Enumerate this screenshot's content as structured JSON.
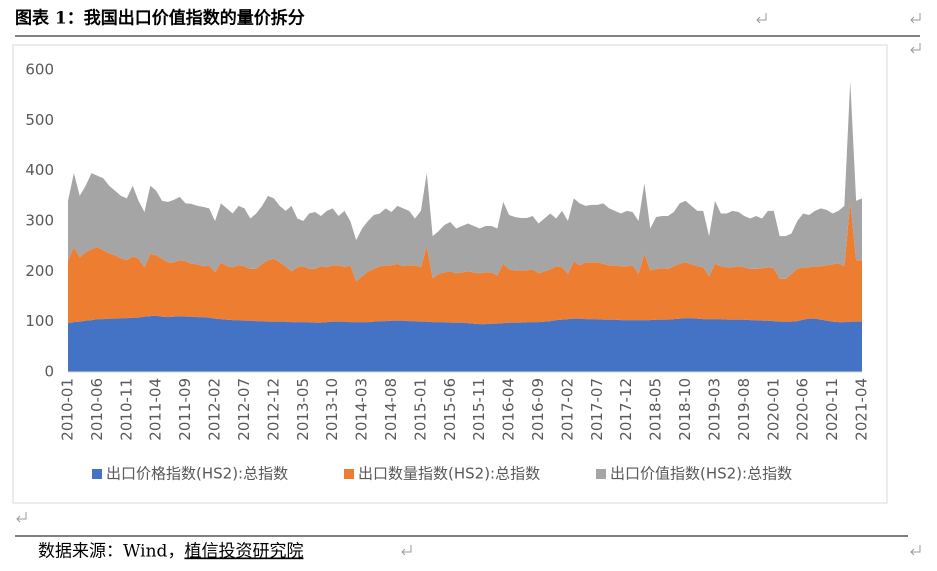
{
  "header": {
    "title": "图表 1：我国出口价值指数的量价拆分"
  },
  "chart_data": {
    "type": "area",
    "stacked": true,
    "legend": "bottom",
    "grid": false,
    "categories": [
      "2010-01",
      null,
      null,
      null,
      null,
      "2010-06",
      null,
      null,
      null,
      null,
      "2010-11",
      null,
      null,
      null,
      null,
      "2011-04",
      null,
      null,
      null,
      null,
      "2011-09",
      null,
      null,
      null,
      null,
      "2012-02",
      null,
      null,
      null,
      null,
      "2012-07",
      null,
      null,
      null,
      null,
      "2012-12",
      null,
      null,
      null,
      null,
      "2013-05",
      null,
      null,
      null,
      null,
      "2013-10",
      null,
      null,
      null,
      null,
      "2014-03",
      null,
      null,
      null,
      null,
      "2014-08",
      null,
      null,
      null,
      null,
      "2015-01",
      null,
      null,
      null,
      null,
      "2015-06",
      null,
      null,
      null,
      null,
      "2015-11",
      null,
      null,
      null,
      null,
      "2016-04",
      null,
      null,
      null,
      null,
      "2016-09",
      null,
      null,
      null,
      null,
      "2017-02",
      null,
      null,
      null,
      null,
      "2017-07",
      null,
      null,
      null,
      null,
      "2017-12",
      null,
      null,
      null,
      null,
      "2018-05",
      null,
      null,
      null,
      null,
      "2018-10",
      null,
      null,
      null,
      null,
      "2019-03",
      null,
      null,
      null,
      null,
      "2019-08",
      null,
      null,
      null,
      null,
      "2020-01",
      null,
      null,
      null,
      null,
      "2020-06",
      null,
      null,
      null,
      null,
      "2020-11",
      null,
      null,
      null,
      null,
      "2021-04"
    ],
    "ylim": [
      0,
      600
    ],
    "yticks": [
      0,
      100,
      200,
      300,
      400,
      500,
      600
    ],
    "series": [
      {
        "name": "出口价格指数(HS2):总指数",
        "color": "#4472c4",
        "values": [
          97,
          99,
          100,
          102,
          103,
          105,
          105,
          106,
          106,
          107,
          107,
          108,
          108,
          110,
          111,
          112,
          110,
          109,
          110,
          111,
          110,
          110,
          109,
          109,
          108,
          106,
          105,
          104,
          103,
          103,
          102,
          102,
          101,
          101,
          100,
          100,
          100,
          100,
          99,
          99,
          99,
          99,
          98,
          98,
          99,
          100,
          100,
          100,
          99,
          99,
          99,
          99,
          100,
          101,
          101,
          102,
          102,
          102,
          101,
          101,
          100,
          100,
          99,
          99,
          99,
          98,
          98,
          98,
          97,
          96,
          95,
          95,
          96,
          96,
          97,
          98,
          98,
          98,
          99,
          99,
          99,
          100,
          101,
          103,
          104,
          105,
          106,
          106,
          105,
          105,
          105,
          104,
          104,
          104,
          103,
          103,
          103,
          103,
          103,
          103,
          104,
          104,
          104,
          105,
          106,
          107,
          107,
          106,
          105,
          105,
          105,
          105,
          104,
          104,
          104,
          104,
          103,
          103,
          102,
          102,
          101,
          100,
          100,
          100,
          101,
          104,
          106,
          106,
          104,
          102,
          100,
          99,
          99,
          100,
          100,
          100
        ]
      },
      {
        "name": "出口数量指数(HS2):总指数",
        "color": "#ed7d31",
        "values": [
          125,
          149,
          128,
          136,
          141,
          143,
          137,
          130,
          126,
          119,
          115,
          122,
          117,
          98,
          124,
          120,
          115,
          109,
          108,
          111,
          110,
          105,
          105,
          101,
          104,
          92,
          113,
          106,
          105,
          109,
          108,
          103,
          104,
          114,
          122,
          125,
          118,
          110,
          101,
          109,
          111,
          106,
          107,
          112,
          109,
          112,
          112,
          108,
          113,
          81,
          91,
          101,
          105,
          109,
          111,
          110,
          113,
          108,
          111,
          111,
          108,
          150,
          87,
          96,
          99,
          102,
          98,
          100,
          103,
          102,
          101,
          103,
          102,
          96,
          118,
          106,
          104,
          104,
          103,
          105,
          97,
          100,
          103,
          107,
          104,
          90,
          114,
          106,
          113,
          113,
          113,
          111,
          108,
          108,
          107,
          107,
          109,
          92,
          132,
          99,
          101,
          102,
          101,
          105,
          109,
          111,
          107,
          104,
          103,
          85,
          110,
          105,
          104,
          104,
          106,
          104,
          102,
          102,
          104,
          106,
          105,
          85,
          85,
          95,
          104,
          104,
          102,
          104,
          106,
          110,
          114,
          117,
          111,
          238,
          122,
          122
        ]
      },
      {
        "name": "出口价值指数(HS2):总指数",
        "color": "#a5a5a5",
        "values": [
          118,
          147,
          122,
          132,
          151,
          142,
          143,
          134,
          128,
          124,
          123,
          140,
          115,
          110,
          135,
          128,
          115,
          120,
          124,
          126,
          115,
          119,
          116,
          118,
          113,
          102,
          117,
          115,
          107,
          118,
          115,
          100,
          110,
          115,
          128,
          120,
          112,
          110,
          130,
          97,
          90,
          110,
          113,
          100,
          112,
          113,
          98,
          112,
          88,
          82,
          95,
          100,
          107,
          105,
          113,
          106,
          115,
          115,
          108,
          93,
          112,
          145,
          84,
          85,
          94,
          98,
          89,
          92,
          95,
          92,
          89,
          92,
          92,
          93,
          123,
          108,
          106,
          104,
          104,
          106,
          99,
          105,
          111,
          95,
          112,
          105,
          125,
          123,
          112,
          114,
          114,
          120,
          113,
          108,
          105,
          110,
          106,
          105,
          140,
          83,
          103,
          104,
          105,
          108,
          120,
          122,
          116,
          110,
          112,
          80,
          125,
          105,
          107,
          112,
          108,
          102,
          100,
          105,
          99,
          112,
          114,
          85,
          85,
          80,
          95,
          107,
          104,
          110,
          115,
          110,
          101,
          104,
          120,
          240,
          118,
          123
        ]
      }
    ]
  },
  "source": {
    "label": "数据来源：Wind，",
    "org": "植信投资研究院"
  }
}
